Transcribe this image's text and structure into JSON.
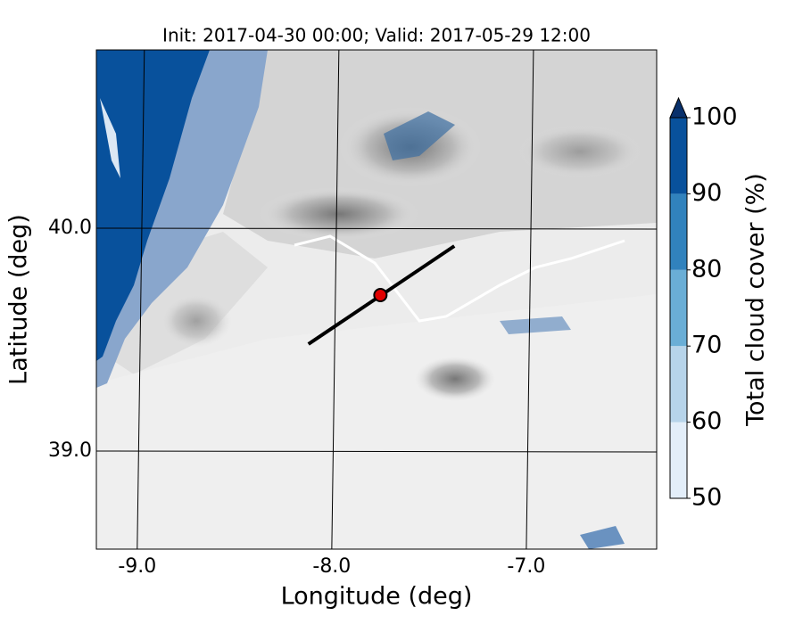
{
  "title": "Init: 2017-04-30 00:00; Valid: 2017-05-29 12:00",
  "map": {
    "x_label": "Longitude (deg)",
    "y_label": "Latitude (deg)",
    "xlim": [
      -9.21,
      -6.33
    ],
    "ylim": [
      38.56,
      40.8
    ],
    "xticks": [
      {
        "value": -9,
        "label": "-9.0"
      },
      {
        "value": -8,
        "label": "-8.0"
      },
      {
        "value": -7,
        "label": "-7.0"
      }
    ],
    "yticks": [
      {
        "value": 40,
        "label": "40.0"
      },
      {
        "value": 39,
        "label": "39.0"
      }
    ],
    "transect": {
      "lon": [
        -8.12,
        -7.37
      ],
      "lat": [
        39.48,
        39.92
      ]
    },
    "marker": {
      "lon": -7.75,
      "lat": 39.7,
      "color": "#e00000"
    }
  },
  "colorbar": {
    "label": "Total cloud cover (%)",
    "lim": [
      50,
      100
    ],
    "ticks": [
      50,
      60,
      70,
      80,
      90,
      100
    ],
    "colors": [
      "#e3eef9",
      "#b7d4ea",
      "#6aaed6",
      "#3182bd",
      "#08519c"
    ],
    "extend_color": "#08306b"
  }
}
